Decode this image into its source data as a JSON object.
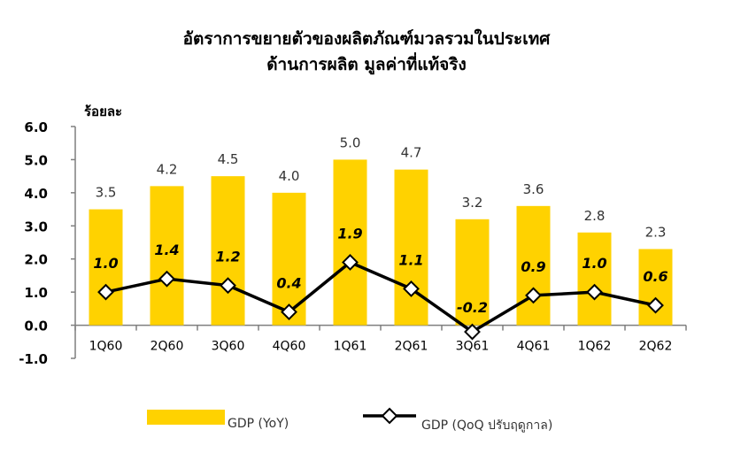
{
  "chart_data": {
    "type": "bar",
    "title": "อัตราการขยายตัวของผลิตภัณฑ์มวลรวมในประเทศ",
    "subtitle": "ด้านการผลิต มูลค่าที่แท้จริง",
    "ylabel": "ร้อยละ",
    "ylim": [
      -1.0,
      6.0
    ],
    "yticks": [
      6.0,
      5.0,
      4.0,
      3.0,
      2.0,
      1.0,
      0.0,
      -1.0
    ],
    "ytick_labels": [
      "6.0",
      "5.0",
      "4.0",
      "3.0",
      "2.0",
      "1.0",
      "0.0",
      "-1.0"
    ],
    "categories": [
      "1Q60",
      "2Q60",
      "3Q60",
      "4Q60",
      "1Q61",
      "2Q61",
      "3Q61",
      "4Q61",
      "1Q62",
      "2Q62"
    ],
    "series": [
      {
        "name": "GDP (YoY)",
        "type": "bar",
        "color": "#FFD200",
        "values": [
          3.5,
          4.2,
          4.5,
          4.0,
          5.0,
          4.7,
          3.2,
          3.6,
          2.8,
          2.3
        ],
        "labels": [
          "3.5",
          "4.2",
          "4.5",
          "4.0",
          "5.0",
          "4.7",
          "3.2",
          "3.6",
          "2.8",
          "2.3"
        ]
      },
      {
        "name": "GDP (QoQ ปรับฤดูกาล)",
        "type": "line",
        "color": "#000000",
        "marker": "diamond",
        "values": [
          1.0,
          1.4,
          1.2,
          0.4,
          1.9,
          1.1,
          -0.2,
          0.9,
          1.0,
          0.6
        ],
        "labels": [
          "1.0",
          "1.4",
          "1.2",
          "0.4",
          "1.9",
          "1.1",
          "-0.2",
          "0.9",
          "1.0",
          "0.6"
        ]
      }
    ],
    "legend": "bottom",
    "grid": false
  }
}
